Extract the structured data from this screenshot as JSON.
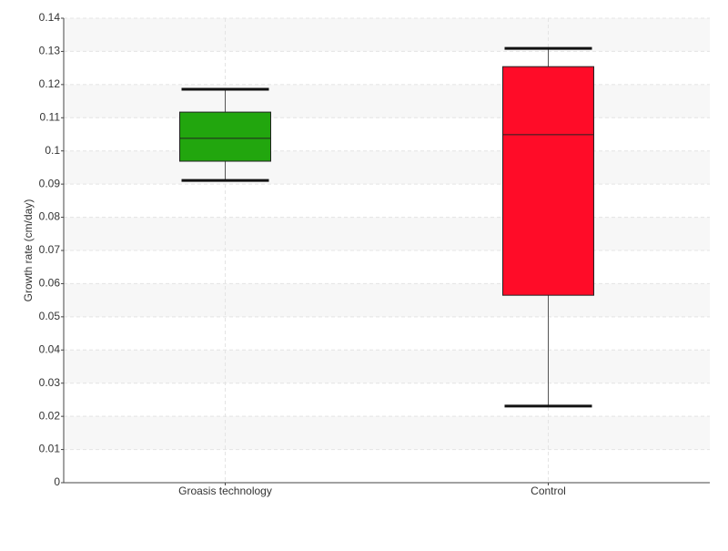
{
  "chart_data": {
    "type": "box",
    "y_label": "Growth rate (cm/day)",
    "categories": [
      "Groasis technology",
      "Control"
    ],
    "colors": [
      "#22a60e",
      "#ff0c28"
    ],
    "boxes": [
      {
        "whisker_low": 0.0911,
        "q1": 0.0969,
        "median": 0.1038,
        "q3": 0.1117,
        "whisker_high": 0.1186
      },
      {
        "whisker_low": 0.0231,
        "q1": 0.0565,
        "median": 0.1049,
        "q3": 0.1254,
        "whisker_high": 0.1309
      }
    ],
    "ylim": [
      0,
      0.14
    ],
    "yticks": [
      0,
      0.01,
      0.02,
      0.03,
      0.04,
      0.05,
      0.06,
      0.07,
      0.08,
      0.09,
      0.1,
      0.11,
      0.12,
      0.13,
      0.14
    ],
    "grid": true
  }
}
